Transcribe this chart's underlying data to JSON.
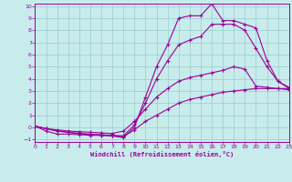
{
  "xlabel": "Windchill (Refroidissement éolien,°C)",
  "bg_color": "#c8ecec",
  "line_color": "#990099",
  "grid_color": "#99cccc",
  "xlim": [
    0,
    23
  ],
  "ylim": [
    -1.2,
    10.2
  ],
  "xticks": [
    0,
    1,
    2,
    3,
    4,
    5,
    6,
    7,
    8,
    9,
    10,
    11,
    12,
    13,
    14,
    15,
    16,
    17,
    18,
    19,
    20,
    21,
    22,
    23
  ],
  "yticks": [
    -1,
    0,
    1,
    2,
    3,
    4,
    5,
    6,
    7,
    8,
    9,
    10
  ],
  "line1_x": [
    0,
    1,
    2,
    3,
    4,
    5,
    6,
    7,
    8,
    9,
    10,
    11,
    12,
    13,
    14,
    15,
    16,
    17,
    18,
    19,
    20,
    21,
    22,
    23
  ],
  "line1_y": [
    0.1,
    -0.3,
    -0.55,
    -0.55,
    -0.6,
    -0.65,
    -0.65,
    -0.7,
    -0.75,
    -0.2,
    0.5,
    1.0,
    1.5,
    2.0,
    2.3,
    2.5,
    2.7,
    2.9,
    3.0,
    3.1,
    3.2,
    3.2,
    3.2,
    3.2
  ],
  "line2_x": [
    0,
    1,
    2,
    3,
    4,
    5,
    6,
    7,
    8,
    9,
    10,
    11,
    12,
    13,
    14,
    15,
    16,
    17,
    18,
    19,
    20,
    21,
    22,
    23
  ],
  "line2_y": [
    0.1,
    -0.1,
    -0.2,
    -0.3,
    -0.35,
    -0.4,
    -0.45,
    -0.5,
    -0.3,
    0.5,
    1.5,
    2.5,
    3.2,
    3.8,
    4.1,
    4.3,
    4.5,
    4.7,
    5.0,
    4.8,
    3.4,
    3.3,
    3.2,
    3.1
  ],
  "line3_x": [
    0,
    1,
    2,
    3,
    4,
    5,
    6,
    7,
    8,
    9,
    10,
    11,
    12,
    13,
    14,
    15,
    16,
    17,
    18,
    19,
    20,
    21,
    22,
    23
  ],
  "line3_y": [
    0.1,
    -0.1,
    -0.3,
    -0.4,
    -0.5,
    -0.55,
    -0.6,
    -0.65,
    -0.7,
    0.2,
    2.0,
    4.0,
    5.5,
    6.8,
    7.2,
    7.5,
    8.5,
    8.5,
    8.5,
    8.0,
    6.5,
    5.0,
    3.8,
    3.3
  ],
  "line4_x": [
    0,
    1,
    2,
    3,
    4,
    5,
    6,
    7,
    8,
    9,
    10,
    11,
    12,
    13,
    14,
    15,
    16,
    17,
    18,
    19,
    20,
    21,
    22,
    23
  ],
  "line4_y": [
    0.1,
    -0.1,
    -0.3,
    -0.4,
    -0.5,
    -0.6,
    -0.65,
    -0.7,
    -0.85,
    0.0,
    2.5,
    5.0,
    6.8,
    9.0,
    9.2,
    9.2,
    10.2,
    8.8,
    8.8,
    8.5,
    8.2,
    5.5,
    3.8,
    3.2
  ]
}
